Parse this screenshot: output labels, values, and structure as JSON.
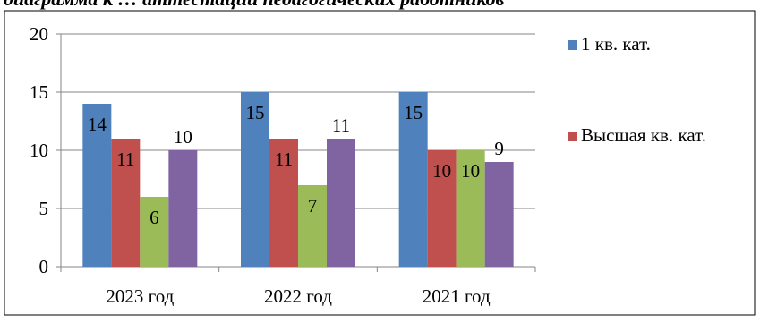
{
  "chart_data": {
    "type": "bar",
    "title": "диаграмма к … аттестации педагогических работников",
    "categories": [
      "2023 год",
      "2022 год",
      "2021 год"
    ],
    "series": [
      {
        "name": "1 кв.  кат.",
        "values": [
          14,
          15,
          15
        ],
        "color": "#4f81bd"
      },
      {
        "name": "Высшая кв. кат.",
        "values": [
          11,
          11,
          10
        ],
        "color": "#c0504d"
      },
      {
        "values": [
          6,
          7,
          10
        ],
        "color": "#9bbb59"
      },
      {
        "values": [
          10,
          11,
          9
        ],
        "color": "#8064a2"
      }
    ],
    "ylim": [
      0,
      20
    ],
    "yticks": [
      0,
      5,
      10,
      15,
      20
    ],
    "grid": true,
    "legend_position": "right"
  }
}
